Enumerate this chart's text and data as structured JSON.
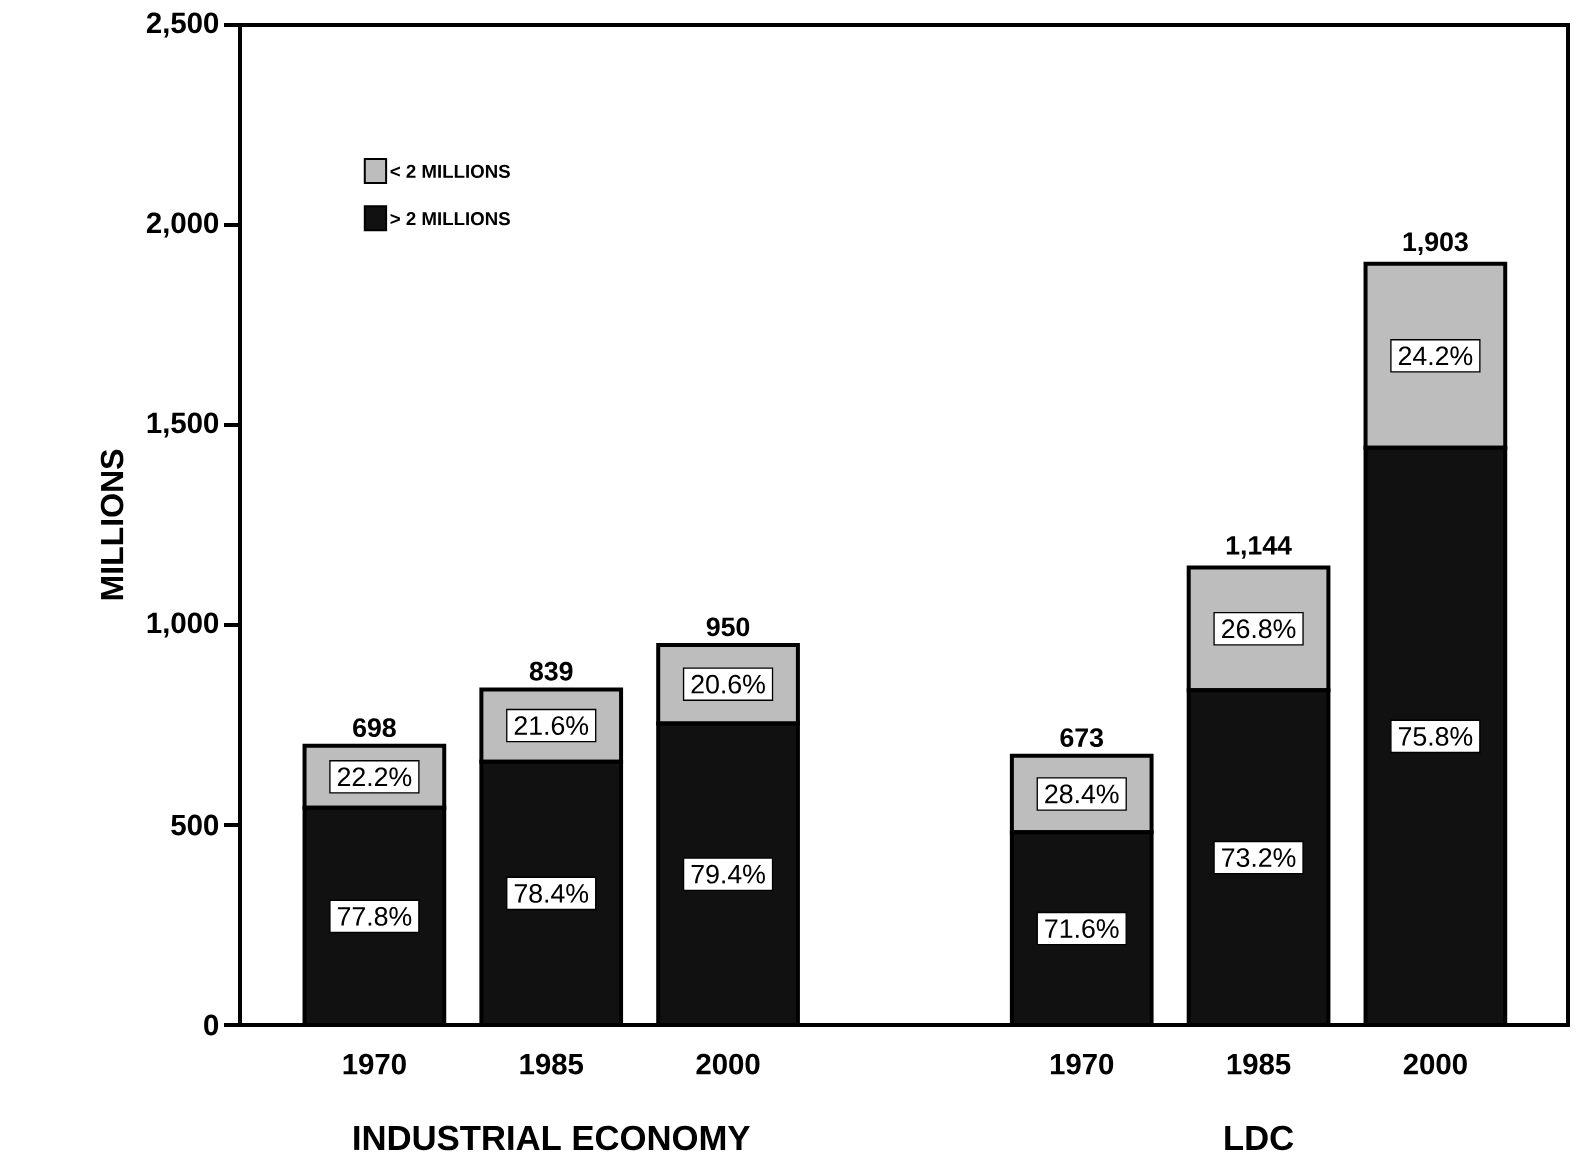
{
  "chart_data": {
    "type": "bar",
    "stacked": true,
    "ylabel": "MILLIONS",
    "categories": [
      "1970",
      "1985",
      "2000",
      null,
      "1970",
      "1985",
      "2000"
    ],
    "series": [
      {
        "name": "> 2 MILLIONS",
        "color": "#111111",
        "values": [
          543,
          658,
          754,
          null,
          482,
          837,
          1443
        ]
      },
      {
        "name": "< 2 MILLIONS",
        "color": "#bdbdbd",
        "values": [
          155,
          181,
          196,
          null,
          191,
          307,
          460
        ]
      }
    ],
    "totals": [
      "698",
      "839",
      "950",
      null,
      "673",
      "1,144",
      "1,903"
    ],
    "annotations": [
      "INDUSTRIAL ECONOMY",
      "LDC",
      "77.8%",
      "22.2%",
      "78.4%",
      "21.6%",
      "79.4%",
      "20.6%",
      "71.6%",
      "28.4%",
      "73.2%",
      "26.8%",
      "75.8%",
      "24.2%"
    ],
    "ylim": [
      0,
      2500
    ],
    "yticks": [
      {
        "value": 0,
        "label": "0"
      },
      {
        "value": 500,
        "label": "500"
      },
      {
        "value": 1000,
        "label": "1,000"
      },
      {
        "value": 1500,
        "label": "1,500"
      },
      {
        "value": 2000,
        "label": "2,000"
      },
      {
        "value": 2500,
        "label": "2,500"
      }
    ],
    "legend": "top left",
    "grid": false
  }
}
